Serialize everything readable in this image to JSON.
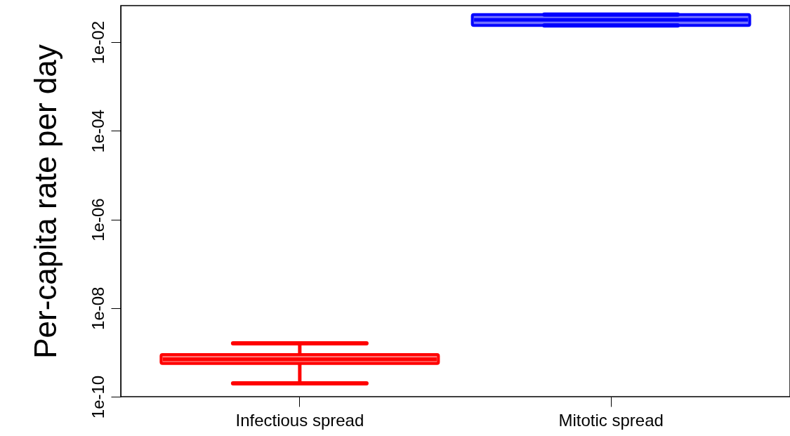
{
  "chart_data": {
    "type": "box",
    "ylabel": "Per-capita rate per day",
    "categories": [
      "Infectious spread",
      "Mitotic spread"
    ],
    "colors": [
      "#ff0000",
      "#0000ff"
    ],
    "boxes": [
      {
        "low": 2e-10,
        "q1": 5.6e-10,
        "median": 7e-10,
        "q3": 8.9e-10,
        "high": 1.6e-09
      },
      {
        "low": 0.024,
        "q1": 0.024,
        "median": 0.032,
        "q3": 0.042,
        "high": 0.042
      }
    ],
    "log": true,
    "ylim": [
      1e-10,
      0.067
    ],
    "yticks": [
      {
        "value": 1e-10,
        "label": "1e-10"
      },
      {
        "value": 1e-08,
        "label": "1e-08"
      },
      {
        "value": 1e-06,
        "label": "1e-06"
      },
      {
        "value": 0.0001,
        "label": "1e-04"
      },
      {
        "value": 0.01,
        "label": "1e-02"
      }
    ],
    "grid": false
  }
}
